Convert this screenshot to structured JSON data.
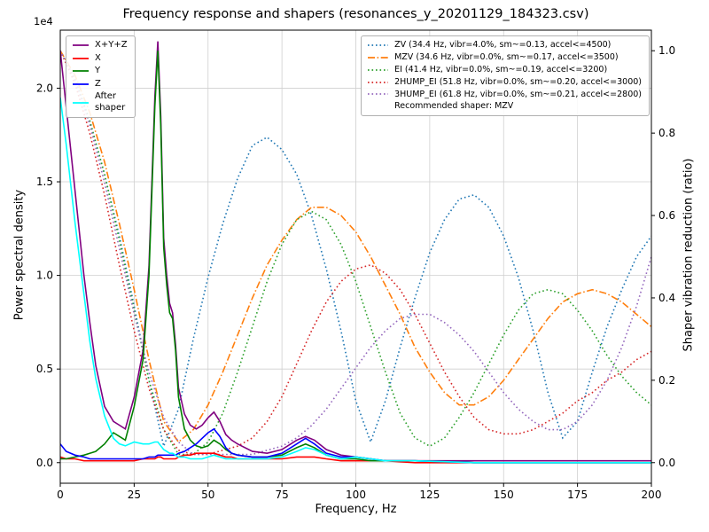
{
  "title": "Frequency response and shapers (resonances_y_20201129_184323.csv)",
  "axes": {
    "x": {
      "label": "Frequency, Hz",
      "ticks": [
        0,
        25,
        50,
        75,
        100,
        125,
        150,
        175,
        200
      ],
      "tick_labels": [
        "0",
        "25",
        "50",
        "75",
        "100",
        "125",
        "150",
        "175",
        "200"
      ]
    },
    "y_left": {
      "label": "Power spectral density",
      "offset_text": "1e4",
      "ticks": [
        0,
        0.5,
        1,
        1.5,
        2
      ],
      "tick_labels": [
        "0.0",
        "0.5",
        "1.0",
        "1.5",
        "2.0"
      ]
    },
    "y_right": {
      "label": "Shaper vibration reduction (ratio)",
      "ticks": [
        0,
        0.2,
        0.4,
        0.6,
        0.8,
        1
      ],
      "tick_labels": [
        "0.0",
        "0.2",
        "0.4",
        "0.6",
        "0.8",
        "1.0"
      ]
    }
  },
  "legend_psd": {
    "items": [
      {
        "label": "X+Y+Z",
        "color": "#800080",
        "linestyle": "solid"
      },
      {
        "label": "X",
        "color": "#ff0000",
        "linestyle": "solid"
      },
      {
        "label": "Y",
        "color": "#008000",
        "linestyle": "solid"
      },
      {
        "label": "Z",
        "color": "#0000ff",
        "linestyle": "solid"
      },
      {
        "label": "After\nshaper",
        "color": "#00ffff",
        "linestyle": "solid"
      }
    ]
  },
  "legend_shapers": {
    "items": [
      {
        "label": "ZV (34.4 Hz, vibr=4.0%, sm~=0.13, accel<=4500)",
        "color": "#1f77b4",
        "linestyle": "dotted"
      },
      {
        "label": "MZV (34.6 Hz, vibr=0.0%, sm~=0.17, accel<=3500)",
        "color": "#ff7f0e",
        "linestyle": "dashdot"
      },
      {
        "label": "EI (41.4 Hz, vibr=0.0%, sm~=0.19, accel<=3200)",
        "color": "#2ca02c",
        "linestyle": "dotted"
      },
      {
        "label": "2HUMP_EI (51.8 Hz, vibr=0.0%, sm~=0.20, accel<=3000)",
        "color": "#d62728",
        "linestyle": "dotted"
      },
      {
        "label": "3HUMP_EI (61.8 Hz, vibr=0.0%, sm~=0.21, accel<=2800)",
        "color": "#9467bd",
        "linestyle": "dotted"
      },
      {
        "label": "Recommended shaper: MZV",
        "color": null,
        "linestyle": "none"
      }
    ]
  },
  "chart_data": {
    "type": "line",
    "title": "Frequency response and shapers (resonances_y_20201129_184323.csv)",
    "xlabel": "Frequency, Hz",
    "ylabel_left": "Power spectral density (1e4)",
    "ylabel_right": "Shaper vibration reduction (ratio)",
    "xlim": [
      0,
      200
    ],
    "ylim_left": [
      -0.11,
      2.31
    ],
    "ylim_right": [
      -0.05,
      1.05
    ],
    "psd_unit": "1e4",
    "grid": true,
    "x_psd": [
      0,
      2,
      5,
      8,
      10,
      12,
      15,
      18,
      20,
      22,
      25,
      28,
      30,
      32,
      33,
      34,
      35,
      36,
      37,
      38,
      39,
      40,
      42,
      44,
      46,
      48,
      50,
      52,
      54,
      56,
      58,
      60,
      65,
      70,
      75,
      80,
      83,
      86,
      90,
      95,
      100,
      105,
      110,
      120,
      140,
      160,
      180,
      200
    ],
    "x_shaper": [
      0,
      5,
      10,
      15,
      20,
      25,
      30,
      35,
      40,
      45,
      50,
      55,
      60,
      65,
      70,
      75,
      80,
      85,
      90,
      95,
      100,
      105,
      110,
      115,
      120,
      125,
      130,
      135,
      140,
      145,
      150,
      155,
      160,
      165,
      170,
      175,
      180,
      185,
      190,
      195,
      200
    ],
    "series": [
      {
        "name": "ZV",
        "yaxis": "right",
        "x_key": "x_shaper",
        "color": "#1f77b4",
        "linestyle": "dotted",
        "values": [
          1.0,
          0.93,
          0.83,
          0.7,
          0.55,
          0.38,
          0.2,
          0.04,
          0.13,
          0.3,
          0.45,
          0.58,
          0.69,
          0.77,
          0.79,
          0.76,
          0.7,
          0.6,
          0.47,
          0.32,
          0.15,
          0.05,
          0.15,
          0.28,
          0.4,
          0.51,
          0.59,
          0.64,
          0.65,
          0.62,
          0.55,
          0.45,
          0.32,
          0.17,
          0.06,
          0.1,
          0.22,
          0.33,
          0.42,
          0.5,
          0.55
        ]
      },
      {
        "name": "MZV",
        "yaxis": "right",
        "x_key": "x_shaper",
        "color": "#ff7f0e",
        "linestyle": "dashdot",
        "values": [
          1.0,
          0.94,
          0.85,
          0.73,
          0.58,
          0.42,
          0.25,
          0.1,
          0.05,
          0.08,
          0.14,
          0.22,
          0.31,
          0.4,
          0.48,
          0.54,
          0.59,
          0.62,
          0.62,
          0.6,
          0.56,
          0.5,
          0.43,
          0.36,
          0.28,
          0.22,
          0.17,
          0.14,
          0.14,
          0.16,
          0.2,
          0.25,
          0.3,
          0.35,
          0.39,
          0.41,
          0.42,
          0.41,
          0.39,
          0.36,
          0.33
        ]
      },
      {
        "name": "EI",
        "yaxis": "right",
        "x_key": "x_shaper",
        "color": "#2ca02c",
        "linestyle": "dotted",
        "values": [
          1.0,
          0.93,
          0.83,
          0.7,
          0.54,
          0.37,
          0.2,
          0.08,
          0.02,
          0.02,
          0.05,
          0.12,
          0.22,
          0.33,
          0.44,
          0.53,
          0.59,
          0.61,
          0.59,
          0.53,
          0.44,
          0.33,
          0.22,
          0.12,
          0.06,
          0.04,
          0.06,
          0.11,
          0.17,
          0.24,
          0.31,
          0.37,
          0.41,
          0.42,
          0.41,
          0.37,
          0.32,
          0.26,
          0.21,
          0.17,
          0.14
        ]
      },
      {
        "name": "2HUMP_EI",
        "yaxis": "right",
        "x_key": "x_shaper",
        "color": "#d62728",
        "linestyle": "dotted",
        "values": [
          1.0,
          0.92,
          0.8,
          0.65,
          0.48,
          0.32,
          0.18,
          0.08,
          0.03,
          0.02,
          0.02,
          0.03,
          0.04,
          0.06,
          0.1,
          0.16,
          0.24,
          0.32,
          0.39,
          0.44,
          0.47,
          0.48,
          0.46,
          0.42,
          0.36,
          0.29,
          0.22,
          0.16,
          0.11,
          0.08,
          0.07,
          0.07,
          0.08,
          0.1,
          0.12,
          0.15,
          0.17,
          0.2,
          0.22,
          0.25,
          0.27
        ]
      },
      {
        "name": "3HUMP_EI",
        "yaxis": "right",
        "x_key": "x_shaper",
        "color": "#9467bd",
        "linestyle": "dotted",
        "values": [
          1.0,
          0.93,
          0.82,
          0.68,
          0.52,
          0.36,
          0.22,
          0.11,
          0.05,
          0.02,
          0.02,
          0.02,
          0.02,
          0.02,
          0.03,
          0.04,
          0.06,
          0.09,
          0.13,
          0.18,
          0.23,
          0.28,
          0.32,
          0.35,
          0.36,
          0.36,
          0.34,
          0.31,
          0.27,
          0.22,
          0.17,
          0.13,
          0.1,
          0.08,
          0.08,
          0.1,
          0.14,
          0.2,
          0.28,
          0.38,
          0.5
        ]
      },
      {
        "name": "X+Y+Z",
        "yaxis": "left",
        "x_key": "x_psd",
        "color": "#800080",
        "linestyle": "solid",
        "values": [
          2.2,
          1.9,
          1.45,
          1.0,
          0.75,
          0.52,
          0.3,
          0.22,
          0.2,
          0.18,
          0.35,
          0.6,
          1.05,
          1.95,
          2.25,
          1.85,
          1.2,
          1.0,
          0.85,
          0.8,
          0.63,
          0.4,
          0.26,
          0.2,
          0.18,
          0.2,
          0.24,
          0.27,
          0.22,
          0.15,
          0.12,
          0.1,
          0.06,
          0.05,
          0.07,
          0.12,
          0.14,
          0.12,
          0.07,
          0.04,
          0.03,
          0.02,
          0.01,
          0.01,
          0.01,
          0.01,
          0.01,
          0.01
        ]
      },
      {
        "name": "X",
        "yaxis": "left",
        "x_key": "x_psd",
        "color": "#ff0000",
        "linestyle": "solid",
        "values": [
          0.03,
          0.02,
          0.02,
          0.01,
          0.01,
          0.01,
          0.01,
          0.01,
          0.01,
          0.01,
          0.01,
          0.02,
          0.02,
          0.02,
          0.03,
          0.03,
          0.02,
          0.02,
          0.02,
          0.02,
          0.02,
          0.03,
          0.04,
          0.04,
          0.05,
          0.05,
          0.05,
          0.05,
          0.04,
          0.03,
          0.03,
          0.02,
          0.02,
          0.02,
          0.02,
          0.03,
          0.03,
          0.03,
          0.02,
          0.01,
          0.01,
          0.01,
          0.01,
          0.0,
          0.0,
          0.0,
          0.0,
          0.0
        ]
      },
      {
        "name": "Y",
        "yaxis": "left",
        "x_key": "x_psd",
        "color": "#008000",
        "linestyle": "solid",
        "values": [
          0.02,
          0.02,
          0.03,
          0.04,
          0.05,
          0.06,
          0.1,
          0.16,
          0.14,
          0.12,
          0.3,
          0.55,
          1.0,
          1.9,
          2.2,
          1.8,
          1.15,
          0.95,
          0.8,
          0.77,
          0.6,
          0.35,
          0.18,
          0.12,
          0.09,
          0.08,
          0.09,
          0.12,
          0.1,
          0.07,
          0.05,
          0.04,
          0.03,
          0.03,
          0.04,
          0.08,
          0.1,
          0.08,
          0.04,
          0.02,
          0.02,
          0.01,
          0.01,
          0.01,
          0.0,
          0.0,
          0.0,
          0.0
        ]
      },
      {
        "name": "Z",
        "yaxis": "left",
        "x_key": "x_psd",
        "color": "#0000ff",
        "linestyle": "solid",
        "values": [
          0.1,
          0.06,
          0.04,
          0.03,
          0.02,
          0.02,
          0.02,
          0.02,
          0.02,
          0.02,
          0.02,
          0.02,
          0.03,
          0.03,
          0.04,
          0.04,
          0.04,
          0.04,
          0.04,
          0.04,
          0.04,
          0.05,
          0.06,
          0.08,
          0.1,
          0.13,
          0.16,
          0.18,
          0.14,
          0.08,
          0.05,
          0.04,
          0.03,
          0.03,
          0.05,
          0.1,
          0.13,
          0.1,
          0.05,
          0.03,
          0.03,
          0.02,
          0.01,
          0.01,
          0.0,
          0.0,
          0.0,
          0.0
        ]
      },
      {
        "name": "After shaper",
        "yaxis": "left",
        "x_key": "x_psd",
        "color": "#00ffff",
        "linestyle": "solid",
        "values": [
          1.95,
          1.7,
          1.28,
          0.9,
          0.65,
          0.45,
          0.25,
          0.13,
          0.1,
          0.09,
          0.11,
          0.1,
          0.1,
          0.11,
          0.11,
          0.09,
          0.07,
          0.06,
          0.05,
          0.05,
          0.04,
          0.03,
          0.03,
          0.02,
          0.02,
          0.02,
          0.03,
          0.04,
          0.03,
          0.02,
          0.02,
          0.02,
          0.02,
          0.02,
          0.03,
          0.06,
          0.08,
          0.07,
          0.04,
          0.02,
          0.03,
          0.02,
          0.01,
          0.01,
          0.0,
          0.0,
          0.0,
          0.0
        ]
      }
    ],
    "annotations": [
      "Recommended shaper: MZV"
    ]
  }
}
